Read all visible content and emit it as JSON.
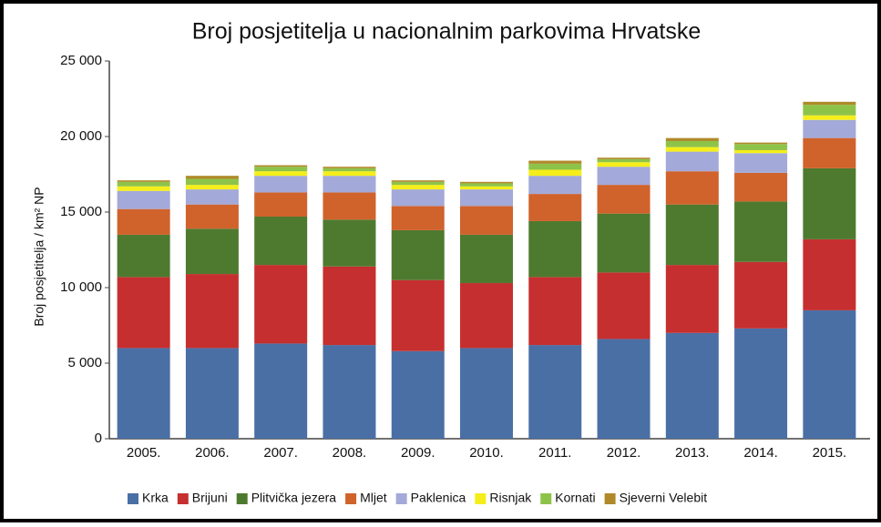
{
  "chart_data": {
    "type": "stacked_bar",
    "title": "Broj posjetitelja u nacionalnim parkovima Hrvatske",
    "y_label": "Broj posjetitelja / km² NP",
    "categories": [
      "2005.",
      "2006.",
      "2007.",
      "2008.",
      "2009.",
      "2010.",
      "2011.",
      "2012.",
      "2013.",
      "2014.",
      "2015."
    ],
    "series": [
      {
        "name": "Krka",
        "color": "#4a6fa5",
        "values": [
          6000,
          6000,
          6300,
          6200,
          5800,
          6000,
          6200,
          6600,
          7000,
          7300,
          8500
        ]
      },
      {
        "name": "Brijuni",
        "color": "#c62f2f",
        "values": [
          4700,
          4900,
          5200,
          5200,
          4700,
          4300,
          4500,
          4400,
          4500,
          4400,
          4700
        ]
      },
      {
        "name": "Plitvička jezera",
        "color": "#4e7a2f",
        "values": [
          2800,
          3000,
          3200,
          3100,
          3300,
          3200,
          3700,
          3900,
          4000,
          4000,
          4700
        ]
      },
      {
        "name": "Mljet",
        "color": "#d0622c",
        "values": [
          1700,
          1600,
          1600,
          1800,
          1600,
          1900,
          1800,
          1900,
          2200,
          1900,
          2000
        ]
      },
      {
        "name": "Paklenica",
        "color": "#a3a9d8",
        "values": [
          1200,
          1000,
          1100,
          1100,
          1100,
          1100,
          1200,
          1200,
          1300,
          1300,
          1200
        ]
      },
      {
        "name": "Risnjak",
        "color": "#f5ee1a",
        "values": [
          300,
          300,
          300,
          300,
          300,
          200,
          400,
          300,
          300,
          200,
          300
        ]
      },
      {
        "name": "Kornati",
        "color": "#8ec34a",
        "values": [
          300,
          400,
          300,
          200,
          200,
          200,
          400,
          200,
          400,
          400,
          700
        ]
      },
      {
        "name": "Sjeverni Velebit",
        "color": "#b08a2a",
        "values": [
          100,
          200,
          100,
          100,
          100,
          100,
          200,
          100,
          200,
          100,
          200
        ]
      }
    ],
    "ylim": [
      0,
      25000
    ],
    "yticks": [
      {
        "value": 0,
        "label": "0"
      },
      {
        "value": 5000,
        "label": "5 000"
      },
      {
        "value": 10000,
        "label": "10 000"
      },
      {
        "value": 15000,
        "label": "15 000"
      },
      {
        "value": 20000,
        "label": "20 000"
      },
      {
        "value": 25000,
        "label": "25 000"
      }
    ],
    "grid": false
  }
}
